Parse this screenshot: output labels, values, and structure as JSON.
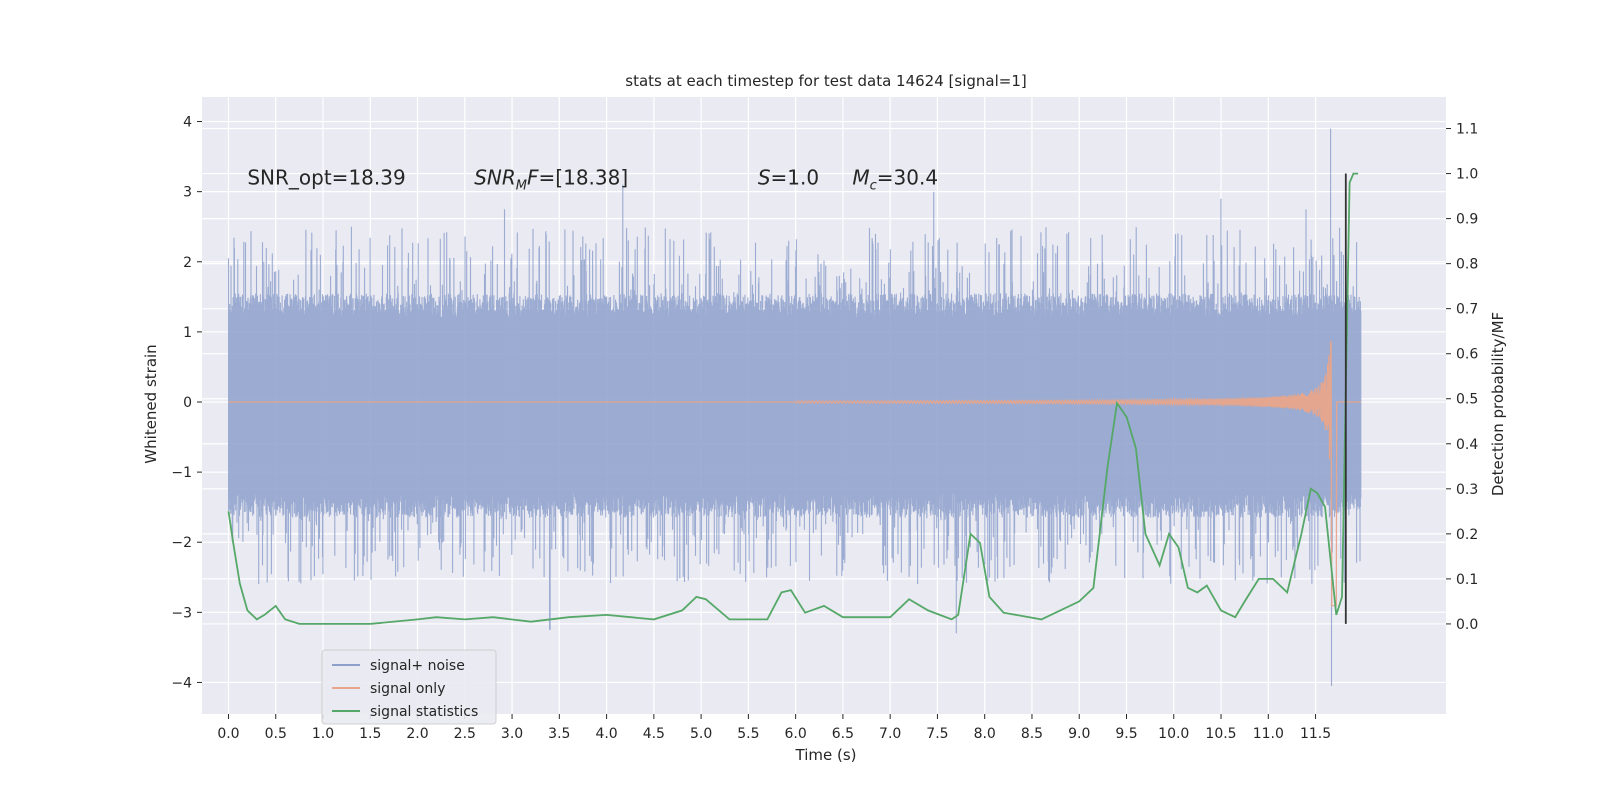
{
  "chart_data": {
    "type": "line",
    "title": "stats at each timestep for test data 14624 [signal=1]",
    "xlabel": "Time (s)",
    "ylabel": "Whitened strain",
    "ylabel_right": "Detection probability/MF",
    "xlim": [
      -0.28,
      12.88
    ],
    "ylim": [
      -4.45,
      4.35
    ],
    "ylim_right": [
      -0.2,
      1.17
    ],
    "x_ticks": [
      "0.0",
      "0.5",
      "1.0",
      "1.5",
      "2.0",
      "2.5",
      "3.0",
      "3.5",
      "4.0",
      "4.5",
      "5.0",
      "5.5",
      "6.0",
      "6.5",
      "7.0",
      "7.5",
      "8.0",
      "8.5",
      "9.0",
      "9.5",
      "10.0",
      "10.5",
      "11.0",
      "11.5"
    ],
    "y_ticks": [
      "4",
      "3",
      "2",
      "1",
      "0",
      "−1",
      "−2",
      "−3",
      "−4"
    ],
    "y_ticks_right": [
      "1.1",
      "1.0",
      "0.9",
      "0.8",
      "0.7",
      "0.6",
      "0.5",
      "0.4",
      "0.3",
      "0.2",
      "0.1",
      "0.0"
    ],
    "grid": true,
    "legend_position": "bottom-left",
    "annotations": [
      {
        "text": "SNR_opt=18.39",
        "x": 0.2,
        "y": 3.1
      },
      {
        "text": "SNR",
        "sub": "M",
        "rest": "F=[18.38]",
        "italic_main": true,
        "x": 2.6,
        "y": 3.1
      },
      {
        "text": "S",
        "rest": "=1.0",
        "italic_main": true,
        "x": 5.6,
        "y": 3.1
      },
      {
        "text": "M",
        "sub": "c",
        "rest": "=30.4",
        "italic_main": true,
        "x": 6.6,
        "y": 3.1
      }
    ],
    "vertical_marker": {
      "x": 11.82,
      "y_range": [
        0.0,
        1.0
      ],
      "color": "#333333"
    },
    "series": [
      {
        "name": "signal+ noise",
        "color": "#8da0cb",
        "x_range": [
          0.0,
          11.98
        ],
        "envelope": {
          "upper_band": 1.2,
          "lower_band": -1.3,
          "typical_max": 2.2,
          "typical_min": -2.3,
          "peaks": [
            [
              0.0,
              2.05
            ],
            [
              1.3,
              2.5
            ],
            [
              2.92,
              2.75
            ],
            [
              3.4,
              -3.25
            ],
            [
              4.17,
              3.1
            ],
            [
              7.46,
              3.0
            ],
            [
              7.7,
              -3.3
            ],
            [
              10.5,
              2.9
            ],
            [
              11.4,
              2.75
            ],
            [
              11.66,
              3.9
            ],
            [
              11.67,
              -4.05
            ]
          ]
        },
        "y_axis": "left"
      },
      {
        "name": "signal only",
        "color": "#e8a58a",
        "chirp": {
          "start_x": 7.5,
          "merger_x": 11.66,
          "peak_amplitude": 3.2,
          "min": -3.45
        },
        "y_axis": "left"
      },
      {
        "name": "signal statistics",
        "color": "#55a868",
        "y_axis": "right",
        "points": [
          [
            0.0,
            0.25
          ],
          [
            0.05,
            0.18
          ],
          [
            0.12,
            0.09
          ],
          [
            0.2,
            0.03
          ],
          [
            0.3,
            0.01
          ],
          [
            0.38,
            0.02
          ],
          [
            0.5,
            0.04
          ],
          [
            0.6,
            0.01
          ],
          [
            0.75,
            0.0
          ],
          [
            1.0,
            0.0
          ],
          [
            1.5,
            0.0
          ],
          [
            2.0,
            0.01
          ],
          [
            2.2,
            0.015
          ],
          [
            2.5,
            0.01
          ],
          [
            2.8,
            0.015
          ],
          [
            3.2,
            0.005
          ],
          [
            3.6,
            0.015
          ],
          [
            4.0,
            0.02
          ],
          [
            4.5,
            0.01
          ],
          [
            4.8,
            0.03
          ],
          [
            4.95,
            0.06
          ],
          [
            5.05,
            0.055
          ],
          [
            5.3,
            0.01
          ],
          [
            5.7,
            0.01
          ],
          [
            5.85,
            0.07
          ],
          [
            5.95,
            0.075
          ],
          [
            6.1,
            0.025
          ],
          [
            6.3,
            0.04
          ],
          [
            6.5,
            0.015
          ],
          [
            7.0,
            0.015
          ],
          [
            7.2,
            0.055
          ],
          [
            7.4,
            0.03
          ],
          [
            7.65,
            0.01
          ],
          [
            7.72,
            0.02
          ],
          [
            7.85,
            0.2
          ],
          [
            7.95,
            0.18
          ],
          [
            8.05,
            0.06
          ],
          [
            8.2,
            0.025
          ],
          [
            8.6,
            0.01
          ],
          [
            9.0,
            0.05
          ],
          [
            9.15,
            0.08
          ],
          [
            9.3,
            0.35
          ],
          [
            9.4,
            0.49
          ],
          [
            9.5,
            0.46
          ],
          [
            9.6,
            0.39
          ],
          [
            9.7,
            0.2
          ],
          [
            9.85,
            0.13
          ],
          [
            9.95,
            0.2
          ],
          [
            10.05,
            0.17
          ],
          [
            10.15,
            0.08
          ],
          [
            10.25,
            0.07
          ],
          [
            10.35,
            0.085
          ],
          [
            10.5,
            0.03
          ],
          [
            10.65,
            0.015
          ],
          [
            10.75,
            0.05
          ],
          [
            10.9,
            0.1
          ],
          [
            11.05,
            0.1
          ],
          [
            11.2,
            0.07
          ],
          [
            11.35,
            0.2
          ],
          [
            11.45,
            0.3
          ],
          [
            11.52,
            0.29
          ],
          [
            11.6,
            0.26
          ],
          [
            11.72,
            0.02
          ],
          [
            11.78,
            0.06
          ],
          [
            11.86,
            0.98
          ],
          [
            11.9,
            1.0
          ],
          [
            11.95,
            1.0
          ]
        ]
      }
    ]
  }
}
